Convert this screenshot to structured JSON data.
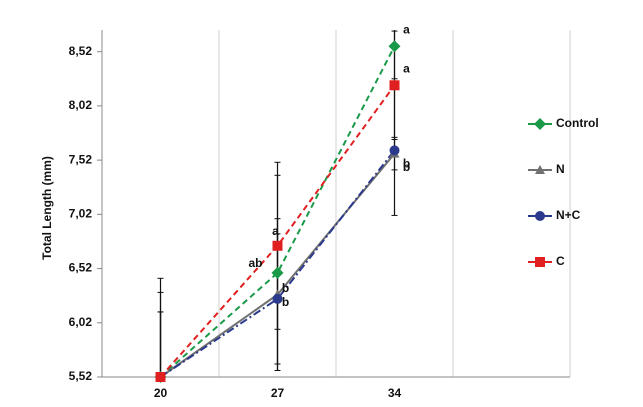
{
  "chart_data": {
    "type": "line",
    "y_label": "Total Length (mm)",
    "categories": [
      "20",
      "27",
      "34",
      null
    ],
    "ylim": [
      5.52,
      8.72
    ],
    "yticks": [
      {
        "value": 5.52,
        "label": "5,52"
      },
      {
        "value": 6.02,
        "label": "6,02"
      },
      {
        "value": 6.52,
        "label": "6,52"
      },
      {
        "value": 7.02,
        "label": "7,02"
      },
      {
        "value": 7.52,
        "label": "7,52"
      },
      {
        "value": 8.02,
        "label": "8,02"
      },
      {
        "value": 8.52,
        "label": "8,52"
      }
    ],
    "grid": true,
    "legend": "right",
    "series": [
      {
        "name": "Control",
        "color": "#1a9a48",
        "marker": "diamond",
        "dash": "6,4",
        "values": [
          5.52,
          6.48,
          8.57,
          null
        ],
        "errors": [
          0.91,
          0.9,
          0.3,
          null
        ],
        "letters": [
          null,
          "ab",
          "a",
          null
        ]
      },
      {
        "name": "N",
        "color": "#707070",
        "marker": "triangle",
        "dash": "none",
        "values": [
          5.52,
          6.28,
          7.58,
          null
        ],
        "errors": [
          0.6,
          0.7,
          0.15,
          null
        ],
        "letters": [
          null,
          "b",
          "b",
          null
        ]
      },
      {
        "name": "N+C",
        "color": "#2b3a8c",
        "marker": "circle",
        "dash": "8,3,2,3",
        "values": [
          5.52,
          6.24,
          7.61,
          null
        ],
        "errors": [
          0.6,
          0.6,
          0.6,
          null
        ],
        "letters": [
          null,
          "b",
          "b",
          null
        ]
      },
      {
        "name": "C",
        "color": "#e02020",
        "marker": "square",
        "dash": "6,4",
        "values": [
          5.52,
          6.73,
          8.21,
          null
        ],
        "errors": [
          0.78,
          0.77,
          0.5,
          null
        ],
        "letters": [
          null,
          "a",
          "a",
          null
        ]
      }
    ]
  }
}
